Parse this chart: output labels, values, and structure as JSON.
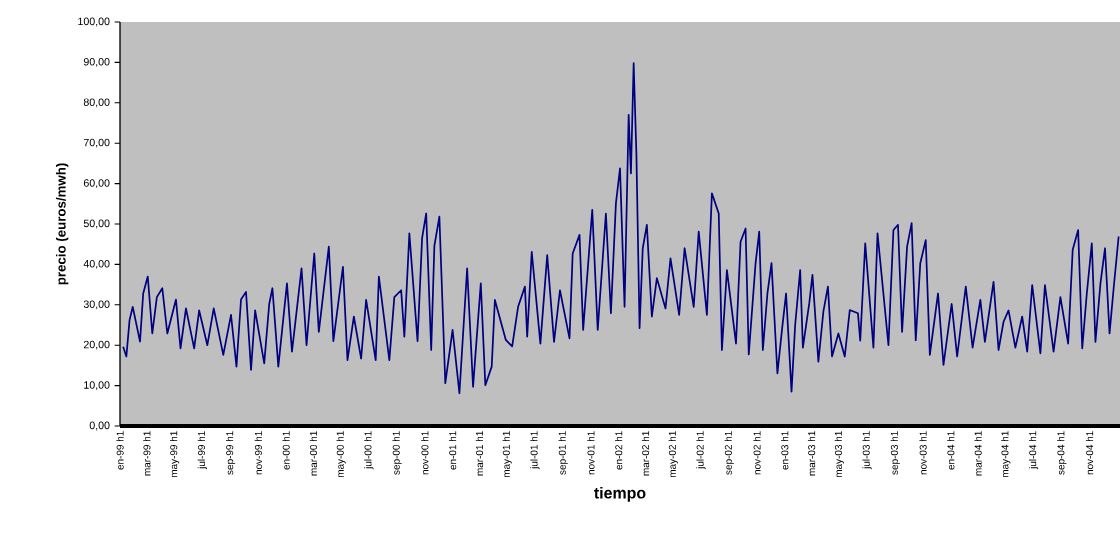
{
  "chart_data": {
    "type": "line",
    "xlabel": "tiempo",
    "ylabel": "precio (euros/mwh)",
    "xlim": [
      "1999-01-01",
      "2005-01-07"
    ],
    "ylim": [
      0,
      100
    ],
    "xticks": [
      {
        "value": "1999-01-01",
        "label": "en-99 h1"
      },
      {
        "value": "1999-03-01",
        "label": "mar-99 h1"
      },
      {
        "value": "1999-05-01",
        "label": "may-99 h1"
      },
      {
        "value": "1999-07-01",
        "label": "jul-99 h1"
      },
      {
        "value": "1999-09-01",
        "label": "sep-99 h1"
      },
      {
        "value": "1999-11-01",
        "label": "nov-99 h1"
      },
      {
        "value": "2000-01-01",
        "label": "en-00 h1"
      },
      {
        "value": "2000-03-01",
        "label": "mar-00 h1"
      },
      {
        "value": "2000-05-01",
        "label": "may-00 h1"
      },
      {
        "value": "2000-07-01",
        "label": "jul-00 h1"
      },
      {
        "value": "2000-09-01",
        "label": "sep-00 h1"
      },
      {
        "value": "2000-11-01",
        "label": "nov-00 h1"
      },
      {
        "value": "2001-01-01",
        "label": "en-01 h1"
      },
      {
        "value": "2001-03-01",
        "label": "mar-01 h1"
      },
      {
        "value": "2001-05-01",
        "label": "may-01 h1"
      },
      {
        "value": "2001-07-01",
        "label": "jul-01 h1"
      },
      {
        "value": "2001-09-01",
        "label": "sep-01 h1"
      },
      {
        "value": "2001-11-01",
        "label": "nov-01 h1"
      },
      {
        "value": "2002-01-01",
        "label": "en-02 h1"
      },
      {
        "value": "2002-03-01",
        "label": "mar-02 h1"
      },
      {
        "value": "2002-05-01",
        "label": "may-02 h1"
      },
      {
        "value": "2002-07-01",
        "label": "jul-02 h1"
      },
      {
        "value": "2002-09-01",
        "label": "sep-02 h1"
      },
      {
        "value": "2002-11-01",
        "label": "nov-02 h1"
      },
      {
        "value": "2003-01-01",
        "label": "en-03 h1"
      },
      {
        "value": "2003-03-01",
        "label": "mar-03 h1"
      },
      {
        "value": "2003-05-01",
        "label": "may-03 h1"
      },
      {
        "value": "2003-07-01",
        "label": "jul-03 h1"
      },
      {
        "value": "2003-09-01",
        "label": "sep-03 h1"
      },
      {
        "value": "2003-11-01",
        "label": "nov-03 h1"
      },
      {
        "value": "2004-01-01",
        "label": "en-04 h1"
      },
      {
        "value": "2004-03-01",
        "label": "mar-04 h1"
      },
      {
        "value": "2004-05-01",
        "label": "may-04 h1"
      },
      {
        "value": "2004-07-01",
        "label": "jul-04 h1"
      },
      {
        "value": "2004-09-01",
        "label": "sep-04 h1"
      },
      {
        "value": "2004-11-01",
        "label": "nov-04 h1"
      }
    ],
    "yticks": [
      {
        "value": 0,
        "label": "0,00"
      },
      {
        "value": 10,
        "label": "10,00"
      },
      {
        "value": 20,
        "label": "20,00"
      },
      {
        "value": 30,
        "label": "30,00"
      },
      {
        "value": 40,
        "label": "40,00"
      },
      {
        "value": 50,
        "label": "50,00"
      },
      {
        "value": 60,
        "label": "60,00"
      },
      {
        "value": 70,
        "label": "70,00"
      },
      {
        "value": 80,
        "label": "80,00"
      },
      {
        "value": 90,
        "label": "90,00"
      },
      {
        "value": 100,
        "label": "100,00"
      }
    ],
    "x": [
      "1999-01-08",
      "1999-01-15",
      "1999-01-22",
      "1999-01-29",
      "1999-02-14",
      "1999-02-21",
      "1999-03-03",
      "1999-03-13",
      "1999-03-23",
      "1999-04-04",
      "1999-04-15",
      "1999-05-04",
      "1999-05-14",
      "1999-05-26",
      "1999-06-13",
      "1999-06-24",
      "1999-07-12",
      "1999-07-26",
      "1999-08-16",
      "1999-09-02",
      "1999-09-14",
      "1999-09-24",
      "1999-10-05",
      "1999-10-16",
      "1999-10-25",
      "1999-11-14",
      "1999-11-25",
      "1999-12-02",
      "1999-12-15",
      "2000-01-03",
      "2000-01-14",
      "2000-02-04",
      "2000-02-15",
      "2000-03-03",
      "2000-03-13",
      "2000-04-04",
      "2000-04-14",
      "2000-05-05",
      "2000-05-15",
      "2000-05-29",
      "2000-06-14",
      "2000-06-25",
      "2000-07-16",
      "2000-07-23",
      "2000-08-15",
      "2000-08-26",
      "2000-09-10",
      "2000-09-17",
      "2000-09-28",
      "2000-10-16",
      "2000-10-26",
      "2000-11-04",
      "2000-11-15",
      "2000-11-22",
      "2000-12-03",
      "2000-12-16",
      "2001-01-01",
      "2001-01-16",
      "2001-02-02",
      "2001-02-15",
      "2001-03-04",
      "2001-03-14",
      "2001-03-28",
      "2001-04-04",
      "2001-04-28",
      "2001-05-12",
      "2001-05-25",
      "2001-06-09",
      "2001-06-14",
      "2001-06-24",
      "2001-07-13",
      "2001-07-28",
      "2001-08-12",
      "2001-08-25",
      "2001-09-15",
      "2001-09-22",
      "2001-10-07",
      "2001-10-15",
      "2001-11-04",
      "2001-11-16",
      "2001-12-04",
      "2001-12-15",
      "2001-12-26",
      "2002-01-04",
      "2002-01-14",
      "2002-01-23",
      "2002-01-28",
      "2002-02-03",
      "2002-02-09",
      "2002-02-16",
      "2002-02-23",
      "2002-03-04",
      "2002-03-15",
      "2002-03-26",
      "2002-04-14",
      "2002-04-25",
      "2002-05-14",
      "2002-05-26",
      "2002-06-15",
      "2002-06-26",
      "2002-07-14",
      "2002-07-25",
      "2002-08-09",
      "2002-08-16",
      "2002-08-27",
      "2002-09-16",
      "2002-09-26",
      "2002-10-07",
      "2002-10-14",
      "2002-10-29",
      "2002-11-06",
      "2002-11-14",
      "2002-11-24",
      "2002-12-03",
      "2002-12-16",
      "2002-12-26",
      "2003-01-04",
      "2003-01-16",
      "2003-01-24",
      "2003-02-04",
      "2003-02-10",
      "2003-02-24",
      "2003-03-03",
      "2003-03-16",
      "2003-03-27",
      "2003-04-06",
      "2003-04-15",
      "2003-04-29",
      "2003-05-13",
      "2003-05-24",
      "2003-06-11",
      "2003-06-16",
      "2003-06-27",
      "2003-07-15",
      "2003-07-24",
      "2003-08-17",
      "2003-08-28",
      "2003-09-07",
      "2003-09-16",
      "2003-09-27",
      "2003-10-07",
      "2003-10-16",
      "2003-10-26",
      "2003-11-07",
      "2003-11-16",
      "2003-12-04",
      "2003-12-16",
      "2004-01-03",
      "2004-01-15",
      "2004-02-03",
      "2004-02-18",
      "2004-03-06",
      "2004-03-16",
      "2004-04-04",
      "2004-04-15",
      "2004-04-26",
      "2004-05-07",
      "2004-05-22",
      "2004-06-06",
      "2004-06-17",
      "2004-06-28",
      "2004-07-16",
      "2004-07-26",
      "2004-08-14",
      "2004-08-29",
      "2004-09-15",
      "2004-09-25",
      "2004-10-07",
      "2004-10-16",
      "2004-10-26",
      "2004-11-06",
      "2004-11-14",
      "2004-11-25",
      "2004-12-05",
      "2004-12-15",
      "2004-12-24",
      "2005-01-04"
    ],
    "series": [
      {
        "color": "#000080",
        "values": [
          19.6,
          17.2,
          26.2,
          29.5,
          20.9,
          32.8,
          37,
          22.9,
          31.9,
          34.1,
          22.9,
          31.3,
          19.2,
          29.1,
          19.2,
          28.6,
          20,
          29.1,
          17.6,
          27.5,
          14.7,
          31.3,
          33.2,
          13.9,
          28.6,
          15.5,
          30.2,
          34.1,
          14.7,
          35.3,
          18.4,
          39,
          20,
          42.7,
          23.3,
          44.4,
          21,
          39.4,
          16.3,
          27.1,
          16.7,
          31.2,
          16.3,
          37,
          16.3,
          31.9,
          33.6,
          22.1,
          47.7,
          21,
          46.5,
          52.6,
          18.8,
          44.6,
          51.8,
          10.6,
          23.8,
          8.1,
          39,
          9.7,
          35.3,
          10.1,
          14.7,
          31.2,
          21.3,
          19.7,
          29.5,
          34.5,
          22.1,
          43.1,
          20.4,
          42.3,
          20.8,
          33.6,
          21.7,
          42.7,
          47.3,
          23.8,
          53.5,
          23.8,
          52.6,
          27.9,
          55.1,
          63.8,
          29.5,
          77,
          62.5,
          89.8,
          67.5,
          24.2,
          44,
          49.8,
          27.1,
          36.6,
          29.1,
          41.5,
          27.5,
          44,
          29.5,
          48.1,
          27.5,
          57.6,
          52.6,
          18.8,
          38.6,
          20.4,
          45.6,
          48.9,
          17.7,
          40.3,
          48.1,
          18.8,
          32.8,
          40.3,
          13,
          23.8,
          32.8,
          8.5,
          25,
          38.6,
          19.4,
          30.4,
          37.4,
          15.9,
          28.3,
          34.5,
          17.2,
          22.9,
          17.2,
          28.7,
          27.9,
          21.1,
          45.2,
          19.4,
          47.7,
          20,
          48.5,
          49.8,
          23.3,
          44.4,
          50.2,
          21.2,
          40.3,
          46,
          17.6,
          32.8,
          15.1,
          30.2,
          17.2,
          34.5,
          19.4,
          31.2,
          20.8,
          35.7,
          18.8,
          25.8,
          28.6,
          19.4,
          27.1,
          18.4,
          34.9,
          18,
          34.9,
          18.4,
          31.9,
          20.4,
          43.6,
          48.5,
          19.2,
          32.8,
          45.2,
          20.8,
          35.3,
          44,
          22.9,
          34.1,
          46.9
        ]
      }
    ]
  }
}
